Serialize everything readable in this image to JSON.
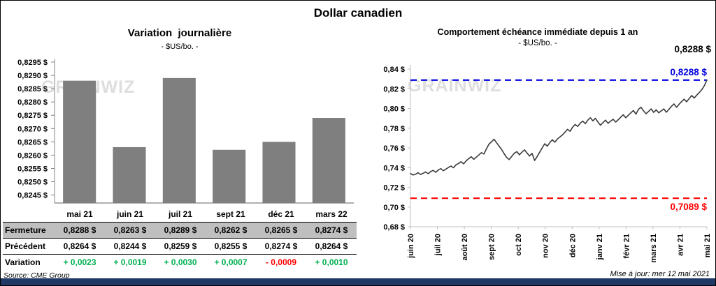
{
  "window": {
    "title": "Dollar canadien"
  },
  "watermark": "GRAINWIZ",
  "colors": {
    "positive": "#00B050",
    "negative": "#FF0000",
    "footer_bar": "#1F3864",
    "table_shade": "#BFBFBF"
  },
  "chart_data": [
    {
      "id": "variation-journaliere",
      "type": "bar",
      "title": "Variation  journalière",
      "subtitle": "- $US/bo. -",
      "categories": [
        "mai 21",
        "juin 21",
        "juil 21",
        "sept 21",
        "déc 21",
        "mars 22"
      ],
      "values": [
        0.8288,
        0.8263,
        0.8289,
        0.8262,
        0.8265,
        0.8274
      ],
      "ylim": [
        0.8242,
        0.8295
      ],
      "yticks": [
        0.8245,
        0.825,
        0.8255,
        0.826,
        0.8265,
        0.827,
        0.8275,
        0.828,
        0.8285,
        0.829,
        0.8295
      ],
      "ytick_labels": [
        "0,8245 $",
        "0,8250 $",
        "0,8255 $",
        "0,8260 $",
        "0,8265 $",
        "0,8270 $",
        "0,8275 $",
        "0,8280 $",
        "0,8285 $",
        "0,8290 $",
        "0,8295 $"
      ],
      "bar_color": "#7F7F7F",
      "grid": false,
      "legend": false
    },
    {
      "id": "comportement-echeance-1an",
      "type": "line",
      "title": "Comportement échéance immédiate depuis 1 an",
      "subtitle": "- $US/bo. -",
      "x_tick_labels": [
        "juin 20",
        "juil 20",
        "août 20",
        "sept 20",
        "oct 20",
        "nov 20",
        "déc 20",
        "janv 21",
        "févr 21",
        "mars 21",
        "avr 21",
        "mai 21"
      ],
      "values": [
        0.734,
        0.7325,
        0.7332,
        0.7348,
        0.733,
        0.7342,
        0.7356,
        0.7338,
        0.736,
        0.7372,
        0.7352,
        0.7376,
        0.739,
        0.7368,
        0.7385,
        0.7402,
        0.7415,
        0.7398,
        0.7428,
        0.7442,
        0.746,
        0.7438,
        0.7468,
        0.7492,
        0.751,
        0.7484,
        0.7506,
        0.7528,
        0.7552,
        0.7538,
        0.759,
        0.7638,
        0.7662,
        0.7688,
        0.7652,
        0.7618,
        0.7582,
        0.754,
        0.7502,
        0.7482,
        0.7515,
        0.7546,
        0.7562,
        0.753,
        0.7556,
        0.758,
        0.7548,
        0.7518,
        0.7544,
        0.7472,
        0.7512,
        0.7556,
        0.76,
        0.7642,
        0.7618,
        0.7654,
        0.7682,
        0.7658,
        0.769,
        0.7712,
        0.7732,
        0.776,
        0.7788,
        0.7768,
        0.781,
        0.7838,
        0.7818,
        0.785,
        0.7872,
        0.7846,
        0.7882,
        0.7906,
        0.7874,
        0.79,
        0.7862,
        0.783,
        0.7856,
        0.7882,
        0.785,
        0.7872,
        0.789,
        0.7862,
        0.7886,
        0.7912,
        0.7936,
        0.7906,
        0.7932,
        0.7956,
        0.798,
        0.7942,
        0.7992,
        0.8012,
        0.7976,
        0.7946,
        0.797,
        0.7996,
        0.796,
        0.7986,
        0.7956,
        0.7976,
        0.7996,
        0.7962,
        0.799,
        0.8022,
        0.8046,
        0.8012,
        0.8042,
        0.807,
        0.8094,
        0.8068,
        0.81,
        0.8132,
        0.8106,
        0.8136,
        0.8162,
        0.8192,
        0.8232,
        0.8288
      ],
      "ylim": [
        0.68,
        0.84
      ],
      "yticks": [
        0.68,
        0.7,
        0.72,
        0.74,
        0.76,
        0.78,
        0.8,
        0.82,
        0.84
      ],
      "ytick_labels": [
        "0,68 $",
        "0,70 $",
        "0,72 $",
        "0,74 $",
        "0,76 $",
        "0,78 $",
        "0,80 $",
        "0,82 $",
        "0,84 $"
      ],
      "line_color": "#3A3A3A",
      "grid": false,
      "legend": false,
      "current_value_label": "0,8288 $",
      "reference_lines": [
        {
          "value": 0.8288,
          "color": "#0000E0",
          "label": "0,8288 $",
          "label_position": "above-right"
        },
        {
          "value": 0.7089,
          "color": "#FF0000",
          "label": "0,7089 $",
          "label_position": "below-right"
        }
      ]
    }
  ],
  "left_table": {
    "rows": [
      {
        "label": "Fermeture",
        "values": [
          "0,8288 $",
          "0,8263 $",
          "0,8289 $",
          "0,8262 $",
          "0,8265 $",
          "0,8274 $"
        ]
      },
      {
        "label": "Précédent",
        "values": [
          "0,8264 $",
          "0,8244 $",
          "0,8259 $",
          "0,8255 $",
          "0,8274 $",
          "0,8264 $"
        ]
      },
      {
        "label": "Variation",
        "values": [
          "+ 0,0023",
          "+ 0,0019",
          "+ 0,0030",
          "+ 0,0007",
          "- 0,0009",
          "+ 0,0010"
        ],
        "value_colors": [
          "#00B050",
          "#00B050",
          "#00B050",
          "#00B050",
          "#FF0000",
          "#00B050"
        ]
      }
    ]
  },
  "footer": {
    "source": "Source: CME Group",
    "updated": "Mise à jour: mer 12 mai 2021"
  }
}
